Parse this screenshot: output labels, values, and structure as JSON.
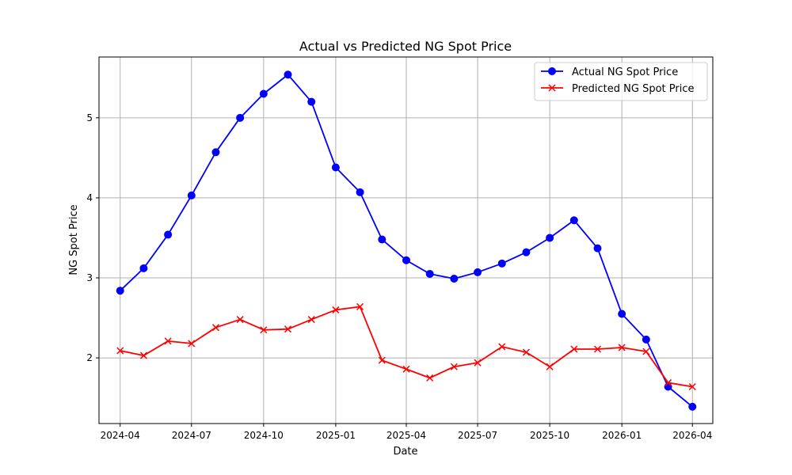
{
  "chart_data": {
    "type": "line",
    "title": "Actual vs Predicted NG Spot Price",
    "xlabel": "Date",
    "ylabel": "NG Spot Price",
    "x": [
      "2024-04-01",
      "2024-05-01",
      "2024-06-01",
      "2024-07-01",
      "2024-08-01",
      "2024-09-01",
      "2024-10-01",
      "2024-11-01",
      "2024-12-01",
      "2025-01-01",
      "2025-02-01",
      "2025-03-01",
      "2025-04-01",
      "2025-05-01",
      "2025-06-01",
      "2025-07-01",
      "2025-08-01",
      "2025-09-01",
      "2025-10-01",
      "2025-11-01",
      "2025-12-01",
      "2026-01-01",
      "2026-02-01",
      "2026-03-01",
      "2026-04-01"
    ],
    "xlim": [
      "2024-03-05",
      "2026-04-27"
    ],
    "ylim": [
      1.18,
      5.76
    ],
    "x_ticks": [
      "2024-04",
      "2024-07",
      "2024-10",
      "2025-01",
      "2025-04",
      "2025-07",
      "2025-10",
      "2026-01",
      "2026-04"
    ],
    "y_ticks": [
      "2",
      "3",
      "4",
      "5"
    ],
    "grid": true,
    "legend_position": "upper right",
    "series": [
      {
        "name": "Actual NG Spot Price",
        "color": "#0000ff",
        "marker": "circle",
        "values": [
          2.84,
          3.12,
          3.54,
          4.03,
          4.57,
          5.0,
          5.3,
          5.54,
          5.2,
          4.38,
          4.07,
          3.48,
          3.22,
          3.05,
          2.99,
          3.07,
          3.18,
          3.32,
          3.5,
          3.72,
          3.37,
          2.55,
          2.23,
          1.64,
          1.39
        ]
      },
      {
        "name": "Predicted NG Spot Price",
        "color": "#ff0000",
        "marker": "x",
        "values": [
          2.09,
          2.03,
          2.21,
          2.18,
          2.38,
          2.48,
          2.35,
          2.36,
          2.48,
          2.6,
          2.64,
          1.97,
          1.86,
          1.75,
          1.89,
          1.94,
          2.14,
          2.07,
          1.89,
          2.11,
          2.11,
          2.13,
          2.08,
          1.69,
          1.64
        ]
      }
    ]
  }
}
